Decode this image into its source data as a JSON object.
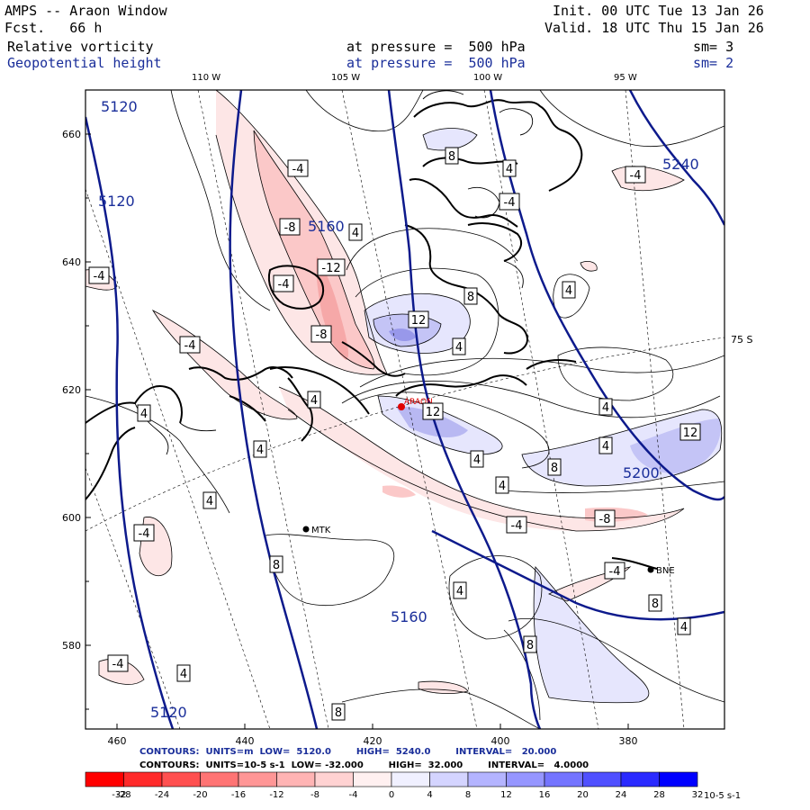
{
  "header": {
    "title": "AMPS -- Araon Window",
    "forecast": "Fcst.   66 h",
    "init": "Init. 00 UTC Tue 13 Jan 26",
    "valid": "Valid. 18 UTC Thu 15 Jan 26",
    "field1": "Relative vorticity",
    "field1_level": "at pressure =  500 hPa",
    "field1_sm": "sm= 3",
    "field2": "Geopotential height",
    "field2_level": "at pressure =  500 hPa",
    "field2_sm": "sm= 2"
  },
  "axes": {
    "top_lon": [
      "110 W",
      "105 W",
      "100 W",
      "95 W"
    ],
    "right_lat": "75 S",
    "left_ticks": [
      "660",
      "640",
      "620",
      "600",
      "580"
    ],
    "bottom_ticks": [
      "460",
      "440",
      "420",
      "400",
      "380"
    ]
  },
  "stations": [
    {
      "name": "MTK"
    },
    {
      "name": "ARAON"
    },
    {
      "name": "BNE"
    }
  ],
  "height_labels": [
    "5120",
    "5120",
    "5160",
    "5240",
    "5200",
    "5160",
    "5120"
  ],
  "vort_labels": [
    "-4",
    "-4",
    "-8",
    "-12",
    "-4",
    "-8",
    "-4",
    "-4",
    "-4",
    "4",
    "4",
    "4",
    "4",
    "-4",
    "-4",
    "-8",
    "-4",
    "4",
    "4",
    "8",
    "4",
    "12",
    "4",
    "12",
    "8",
    "4",
    "8",
    "12",
    "8",
    "4",
    "4",
    "4",
    "8",
    "4",
    "8",
    "4",
    "8",
    "4",
    "-4"
  ],
  "footer": {
    "line1": "CONTOURS:  UNITS=m  LOW=  5120.0        HIGH=  5240.0        INTERVAL=   20.000",
    "line2": "CONTOURS:  UNITS=10-5 s-1  LOW= -32.000        HIGH=  32.000        INTERVAL=   4.0000"
  },
  "colorbar": {
    "labels": [
      "-32",
      "-28",
      "-24",
      "-20",
      "-16",
      "-12",
      "-8",
      "-4",
      "0",
      "4",
      "8",
      "12",
      "16",
      "20",
      "24",
      "28",
      "32"
    ],
    "units": "10-5 s-1",
    "colors": [
      "#ff0000",
      "#ff2a2a",
      "#ff5050",
      "#ff7474",
      "#ff9696",
      "#ffb4b4",
      "#ffd2d2",
      "#fff0f0",
      "#f0f0ff",
      "#d4d4ff",
      "#b4b4ff",
      "#9696ff",
      "#7474ff",
      "#5050ff",
      "#2a2aff",
      "#0000ff"
    ]
  }
}
